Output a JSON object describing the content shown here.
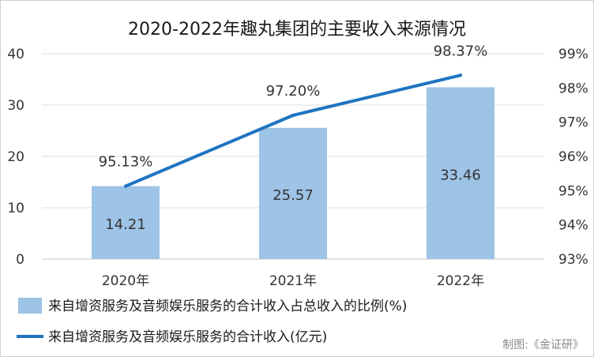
{
  "chart_data": {
    "type": "bar",
    "title": "2020-2022年趣丸集团的主要收入来源情况",
    "categories": [
      "2020年",
      "2021年",
      "2022年"
    ],
    "series": [
      {
        "name": "来自增资服务及音频娱乐服务的合计收入占总收入的比例(%)",
        "type": "bar",
        "values": [
          14.21,
          25.57,
          33.46
        ],
        "color": "#9dc3e6"
      },
      {
        "name": "来自增资服务及音频娱乐服务的合计收入(亿元)",
        "type": "line",
        "values": [
          95.13,
          97.2,
          98.37
        ],
        "color": "#1f74c1"
      }
    ],
    "bar_labels": [
      "14.21",
      "25.57",
      "33.46"
    ],
    "line_labels": [
      "95.13%",
      "97.20%",
      "98.37%"
    ],
    "y_left": {
      "range": [
        0,
        40
      ],
      "ticks": [
        "0",
        "10",
        "20",
        "30",
        "40"
      ]
    },
    "y_right": {
      "range": [
        93,
        99
      ],
      "ticks": [
        "93%",
        "94%",
        "95%",
        "96%",
        "97%",
        "98%",
        "99%"
      ]
    },
    "grid": true,
    "legend_position": "bottom"
  },
  "credit": "制图:《金证研》"
}
